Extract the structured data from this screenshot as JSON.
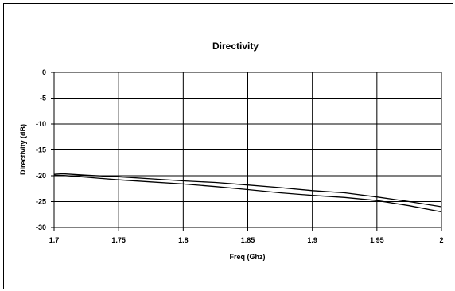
{
  "chart_data": {
    "type": "line",
    "title": "Directivity",
    "xlabel": "Freq (Ghz)",
    "ylabel": "Directivity (dB)",
    "xlim": [
      1.7,
      2.0
    ],
    "ylim": [
      -30,
      0
    ],
    "x_ticks": [
      "1.7",
      "1.75",
      "1.8",
      "1.85",
      "1.9",
      "1.95",
      "2"
    ],
    "y_ticks": [
      "0",
      "-5",
      "-10",
      "-15",
      "-20",
      "-25",
      "-30"
    ],
    "grid": true,
    "legend": "none",
    "line_color": "#000000",
    "series": [
      {
        "x": [
          1.7,
          1.725,
          1.75,
          1.775,
          1.8,
          1.825,
          1.85,
          1.875,
          1.9,
          1.925,
          1.95,
          1.975,
          2.0
        ],
        "values": [
          -19.5,
          -19.9,
          -20.2,
          -20.6,
          -21.0,
          -21.3,
          -21.8,
          -22.3,
          -22.9,
          -23.3,
          -24.1,
          -25.0,
          -26.0
        ]
      },
      {
        "x": [
          1.7,
          1.725,
          1.75,
          1.775,
          1.8,
          1.825,
          1.85,
          1.875,
          1.9,
          1.925,
          1.95,
          1.975,
          2.0
        ],
        "values": [
          -19.8,
          -20.3,
          -20.8,
          -21.2,
          -21.6,
          -22.1,
          -22.7,
          -23.3,
          -23.8,
          -24.2,
          -24.8,
          -25.8,
          -27.0
        ]
      }
    ]
  }
}
